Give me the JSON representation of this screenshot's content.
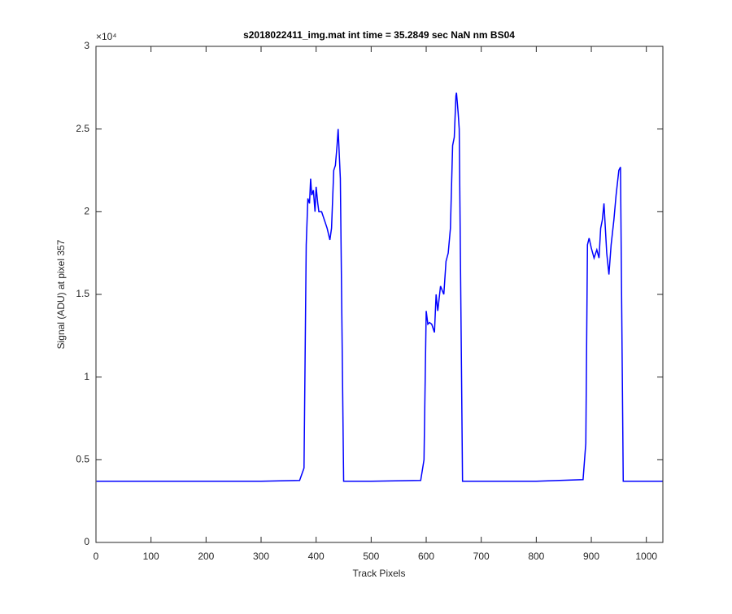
{
  "chart_data": {
    "type": "line",
    "title": "s2018022411_img.mat int time = 35.2849 sec  NaN nm BS04",
    "x_label": "Track Pixels",
    "y_label": "Signal (ADU) at pixel 357",
    "y_exponent_label": "×10⁴",
    "xlim": [
      0,
      1030
    ],
    "ylim": [
      0,
      3
    ],
    "xticks": [
      0,
      100,
      200,
      300,
      400,
      500,
      600,
      700,
      800,
      900,
      1000
    ],
    "yticks": [
      0,
      0.5,
      1,
      1.5,
      2,
      2.5,
      3
    ],
    "series": [
      {
        "name": "signal",
        "color": "#0000ff",
        "x": [
          1,
          100,
          200,
          300,
          370,
          378,
          382,
          385,
          388,
          390,
          392,
          395,
          398,
          400,
          403,
          405,
          410,
          415,
          420,
          425,
          428,
          432,
          435,
          438,
          440,
          444,
          450,
          500,
          590,
          596,
          600,
          603,
          606,
          610,
          615,
          618,
          621,
          626,
          632,
          636,
          640,
          644,
          648,
          651,
          654,
          655,
          658,
          660,
          666,
          700,
          800,
          885,
          890,
          893,
          896,
          900,
          905,
          910,
          914,
          917,
          920,
          923,
          928,
          932,
          936,
          941,
          945,
          950,
          953,
          955,
          958,
          965,
          1030
        ],
        "values": [
          0.37,
          0.37,
          0.37,
          0.37,
          0.375,
          0.45,
          1.8,
          2.08,
          2.05,
          2.2,
          2.1,
          2.13,
          2.0,
          2.15,
          2.05,
          2.0,
          2.0,
          1.95,
          1.9,
          1.83,
          1.9,
          2.25,
          2.28,
          2.4,
          2.5,
          2.2,
          0.37,
          0.37,
          0.375,
          0.5,
          1.4,
          1.32,
          1.33,
          1.32,
          1.27,
          1.5,
          1.4,
          1.55,
          1.5,
          1.7,
          1.75,
          1.9,
          2.4,
          2.45,
          2.7,
          2.72,
          2.6,
          2.5,
          0.37,
          0.37,
          0.37,
          0.38,
          0.6,
          1.8,
          1.84,
          1.78,
          1.72,
          1.77,
          1.72,
          1.9,
          1.95,
          2.05,
          1.75,
          1.62,
          1.8,
          1.95,
          2.1,
          2.25,
          2.27,
          1.5,
          0.37,
          0.37,
          0.37
        ]
      }
    ]
  }
}
